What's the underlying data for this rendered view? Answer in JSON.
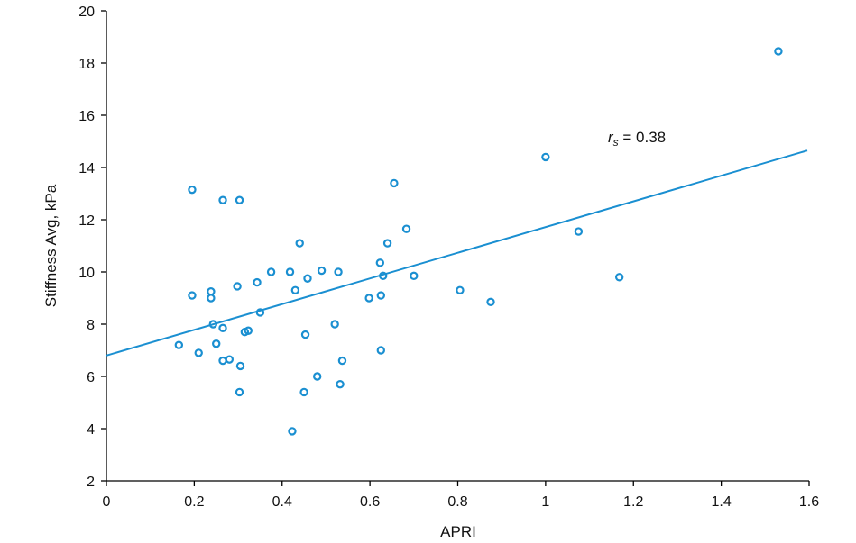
{
  "chart_data": {
    "type": "scatter",
    "title": "",
    "xlabel": "APRI",
    "ylabel": "Stiffness Avg, kPa",
    "xlim": [
      0,
      1.6
    ],
    "ylim": [
      2,
      20
    ],
    "xticks": [
      "0",
      "0.2",
      "0.4",
      "0.6",
      "0.8",
      "1",
      "1.2",
      "1.4",
      "1.6"
    ],
    "yticks": [
      "2",
      "4",
      "6",
      "8",
      "10",
      "12",
      "14",
      "16",
      "18",
      "20"
    ],
    "grid": false,
    "annotation": {
      "symbol": "r",
      "subscript": "s",
      "text": " = 0.38"
    },
    "colors": {
      "series": "#1a8fd1",
      "axis": "#000000"
    },
    "trend_line": {
      "x0": 0,
      "y0": 6.8,
      "x1": 1.6,
      "y1": 14.65
    },
    "points": [
      {
        "x": 0.165,
        "y": 7.2
      },
      {
        "x": 0.195,
        "y": 13.15
      },
      {
        "x": 0.195,
        "y": 9.1
      },
      {
        "x": 0.21,
        "y": 6.9
      },
      {
        "x": 0.238,
        "y": 9.25
      },
      {
        "x": 0.238,
        "y": 9.0
      },
      {
        "x": 0.243,
        "y": 8.0
      },
      {
        "x": 0.25,
        "y": 7.25
      },
      {
        "x": 0.265,
        "y": 12.75
      },
      {
        "x": 0.265,
        "y": 7.85
      },
      {
        "x": 0.265,
        "y": 6.6
      },
      {
        "x": 0.28,
        "y": 6.65
      },
      {
        "x": 0.298,
        "y": 9.45
      },
      {
        "x": 0.303,
        "y": 12.75
      },
      {
        "x": 0.303,
        "y": 5.4
      },
      {
        "x": 0.305,
        "y": 6.4
      },
      {
        "x": 0.315,
        "y": 7.7
      },
      {
        "x": 0.323,
        "y": 7.75
      },
      {
        "x": 0.343,
        "y": 9.6
      },
      {
        "x": 0.35,
        "y": 8.45
      },
      {
        "x": 0.375,
        "y": 10.0
      },
      {
        "x": 0.418,
        "y": 10.0
      },
      {
        "x": 0.423,
        "y": 3.9
      },
      {
        "x": 0.43,
        "y": 9.3
      },
      {
        "x": 0.44,
        "y": 11.1
      },
      {
        "x": 0.45,
        "y": 5.4
      },
      {
        "x": 0.453,
        "y": 7.6
      },
      {
        "x": 0.458,
        "y": 9.75
      },
      {
        "x": 0.48,
        "y": 6.0
      },
      {
        "x": 0.49,
        "y": 10.05
      },
      {
        "x": 0.52,
        "y": 8.0
      },
      {
        "x": 0.528,
        "y": 10.0
      },
      {
        "x": 0.532,
        "y": 5.7
      },
      {
        "x": 0.537,
        "y": 6.6
      },
      {
        "x": 0.598,
        "y": 9.0
      },
      {
        "x": 0.623,
        "y": 10.35
      },
      {
        "x": 0.625,
        "y": 9.1
      },
      {
        "x": 0.625,
        "y": 7.0
      },
      {
        "x": 0.63,
        "y": 9.85
      },
      {
        "x": 0.64,
        "y": 11.1
      },
      {
        "x": 0.655,
        "y": 13.4
      },
      {
        "x": 0.683,
        "y": 11.65
      },
      {
        "x": 0.7,
        "y": 9.85
      },
      {
        "x": 0.805,
        "y": 9.3
      },
      {
        "x": 0.875,
        "y": 8.85
      },
      {
        "x": 1.0,
        "y": 14.4
      },
      {
        "x": 1.075,
        "y": 11.55
      },
      {
        "x": 1.168,
        "y": 9.8
      },
      {
        "x": 1.53,
        "y": 18.45
      }
    ]
  }
}
